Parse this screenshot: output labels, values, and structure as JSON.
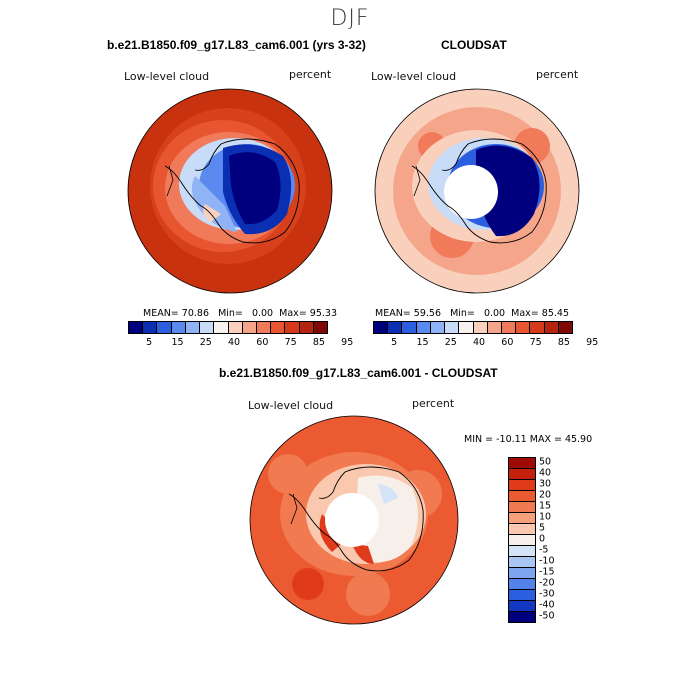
{
  "season": "DJF",
  "panel1": {
    "title": "b.e21.B1850.f09_g17.L83_cam6.001 (yrs 3-32)",
    "variable": "Low-level cloud",
    "units": "percent",
    "mean_label": "MEAN=",
    "mean": "70.86",
    "min_label": "Min=",
    "min": "0.00",
    "max_label": "Max=",
    "max": "95.33"
  },
  "panel2": {
    "title": "CLOUDSAT",
    "variable": "Low-level cloud",
    "units": "percent",
    "mean_label": "MEAN=",
    "mean": "59.56",
    "min_label": "Min=",
    "min": "0.00",
    "max_label": "Max=",
    "max": "85.45"
  },
  "panel3": {
    "title": "b.e21.B1850.f09_g17.L83_cam6.001 - CLOUDSAT",
    "variable": "Low-level cloud",
    "units": "percent",
    "minmax_text": "MIN = -10.11  MAX =  45.90"
  },
  "colorbar_abs": {
    "ticks": [
      "5",
      "15",
      "25",
      "40",
      "60",
      "75",
      "85",
      "95"
    ],
    "colors": [
      "#00007f",
      "#0a2fb3",
      "#2b5fe0",
      "#5a8af0",
      "#8fb3f5",
      "#c8dcf8",
      "#f7f2f0",
      "#f9d0bc",
      "#f5a58a",
      "#f07a5a",
      "#e85531",
      "#d63a1b",
      "#b5240e",
      "#7d0a04"
    ]
  },
  "colorbar_diff": {
    "ticks": [
      "50",
      "40",
      "30",
      "20",
      "15",
      "10",
      "5",
      "0",
      "-5",
      "-10",
      "-15",
      "-20",
      "-30",
      "-40",
      "-50"
    ],
    "colors": [
      "#9e0b05",
      "#c51f0e",
      "#df3a1a",
      "#ec5a32",
      "#f27a50",
      "#f6a07a",
      "#f9c8ae",
      "#f7efe9",
      "#d5e3f7",
      "#a9c6f2",
      "#7ea6ee",
      "#5383ea",
      "#2b5fe0",
      "#1437c2",
      "#00007f"
    ]
  },
  "map_colors": {
    "land_outline": "#000000",
    "pole_hole": "#ffffff"
  }
}
